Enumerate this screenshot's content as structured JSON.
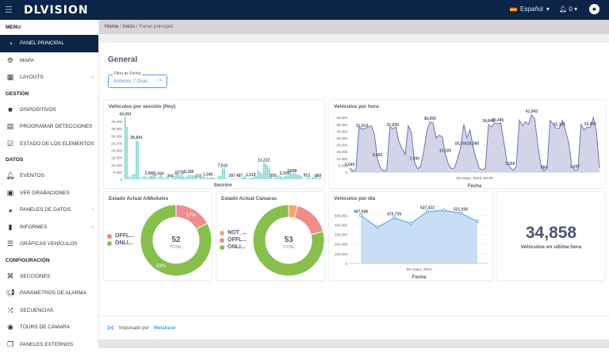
{
  "topbar": {
    "brand": "DLVISION",
    "language": "Español",
    "notifications": "0",
    "menu_icon": "hamburger-icon",
    "user_icon": "user-circle-icon"
  },
  "sidebar": {
    "sections": [
      {
        "title": "MENU",
        "items": [
          {
            "label": "PANEL PRINCIPAL",
            "icon": "dashboard-gauge-icon",
            "active": true
          },
          {
            "label": "MAPA",
            "icon": "globe-icon"
          },
          {
            "label": "LAYOUTS",
            "icon": "grid-icon",
            "expandable": true
          }
        ]
      },
      {
        "title": "GESTIÓN",
        "items": [
          {
            "label": "DISPOSITIVOS",
            "icon": "video-camera-icon"
          },
          {
            "label": "PROGRAMAR DETECCIONES",
            "icon": "calendar-icon"
          },
          {
            "label": "ESTADO DE LOS ELEMENTOS",
            "icon": "checkbox-icon"
          }
        ]
      },
      {
        "title": "DATOS",
        "items": [
          {
            "label": "EVENTOS",
            "icon": "bell-icon"
          },
          {
            "label": "VER GRABACIONES",
            "icon": "file-video-icon"
          },
          {
            "label": "PANELES DE DATOS",
            "icon": "gauge-icon",
            "expandable": true
          },
          {
            "label": "INFORMES",
            "icon": "file-icon",
            "expandable": true
          },
          {
            "label": "GRÁFICAS VEHÍCULOS",
            "icon": "chart-icon"
          }
        ]
      },
      {
        "title": "CONFIGURACIÓN",
        "items": [
          {
            "label": "SECCIONES",
            "icon": "binoculars-icon"
          },
          {
            "label": "PARÁMETROS DE ALARMA",
            "icon": "megaphone-icon"
          },
          {
            "label": "SECUENCIAS",
            "icon": "shuffle-icon"
          },
          {
            "label": "TOURS DE CÁMARA",
            "icon": "record-icon"
          },
          {
            "label": "PANELES EXTERNOS",
            "icon": "clone-icon"
          }
        ]
      }
    ]
  },
  "breadcrumb": [
    "Home",
    "Inicio",
    "Panel principal"
  ],
  "page": {
    "title": "General",
    "filter": {
      "label": "Filtro de Fecha",
      "value": "Anterior 7 Días"
    }
  },
  "footer": {
    "text": "Impulsado por",
    "brand": "Metabase"
  },
  "colors": {
    "navy": "#0b2447",
    "teal": "#88d8d0",
    "purple": "#7172ad",
    "blue": "#509ee3",
    "green": "#88bf4d",
    "red": "#ef8c8c",
    "orange": "#f9a46b"
  },
  "chart_data": [
    {
      "type": "bar",
      "title": "Vehiculos por sección (Hoy)",
      "xlabel": "Sección",
      "ylabel": "",
      "ylim": [
        0,
        45000
      ],
      "yticks": [
        "0",
        "5,000",
        "10,000",
        "15,000",
        "20,000",
        "25,000",
        "30,000",
        "35,000",
        "40,000"
      ],
      "values": [
        43091,
        36500,
        2000,
        1500,
        3500,
        3800,
        26841,
        26000,
        1000,
        800,
        2400,
        1800,
        1200,
        2066,
        2500,
        3200,
        3300,
        500,
        1930,
        3000,
        1500,
        800,
        1200,
        900,
        304,
        1000,
        2000,
        4500,
        5500,
        2739,
        4000,
        1800,
        1500,
        2000,
        3186,
        3000,
        2800,
        2500,
        1500,
        232,
        1500,
        1800,
        2000,
        1200,
        1346,
        1000,
        1500,
        1200,
        600,
        300,
        2800,
        2200,
        7515,
        7400,
        300,
        200,
        200,
        597,
        300,
        200,
        400,
        487,
        700,
        1500,
        2600,
        400,
        500,
        1010,
        1500,
        2000,
        2500,
        6500,
        5000,
        4000,
        11222,
        11000,
        9500,
        7800,
        1500,
        505,
        1000,
        2500,
        2800,
        2200,
        1500,
        2109,
        2500,
        3000,
        6800,
        3948,
        4800,
        4200,
        3500,
        3000,
        2500,
        300,
        100,
        821,
        2200,
        400,
        1500,
        2500,
        3000,
        660,
        2500
      ],
      "labels": {
        "0": "43,091",
        "6": "26,841",
        "13": "2,066",
        "18": "1,930",
        "24": "304",
        "29": "2,739",
        "34": "3,186",
        "39": "232",
        "44": "1,346",
        "52": "7,515",
        "57": "597",
        "61": "487",
        "67": "1,010",
        "74": "11,222",
        "79": "505",
        "85": "2,109",
        "89": "3,948",
        "97": "821",
        "103": "660"
      }
    },
    {
      "type": "area",
      "title": "Vehiculos por hora",
      "xlabel": "Fecha",
      "ylabel": "",
      "ylim": [
        0,
        43000
      ],
      "xtick": "29 mayo, 2023, 00:00",
      "yticks": [
        "0",
        "5,000",
        "10,000",
        "15,000",
        "20,000",
        "25,000",
        "30,000",
        "35,000",
        "40,000"
      ],
      "values": [
        3040,
        1000,
        1500,
        33000,
        31514,
        32000,
        33000,
        34000,
        28000,
        9843,
        3000,
        800,
        1500,
        33000,
        31835,
        33000,
        22000,
        17000,
        13000,
        34000,
        29000,
        7290,
        2500,
        4000,
        15000,
        30000,
        36695,
        36000,
        25000,
        27000,
        26000,
        13183,
        6000,
        2500,
        3000,
        10000,
        18264,
        35000,
        25000,
        31000,
        18380,
        10000,
        3000,
        1500,
        3000,
        34845,
        33000,
        36000,
        35445,
        36000,
        22000,
        8000,
        3350,
        1500,
        4000,
        38000,
        34000,
        37000,
        35000,
        41943,
        39000,
        20000,
        5000,
        884,
        3000,
        38000,
        35000,
        32000,
        32135,
        38000,
        30000,
        22000,
        5000,
        1467,
        2000,
        35000,
        31000,
        33000,
        32459,
        40000,
        30000,
        3000
      ],
      "labels": {
        "0": "3,040",
        "4": "31,514",
        "9": "9,843",
        "14": "31,835",
        "21": "7,290",
        "26": "36,695",
        "31": "13,183",
        "36": "18,264",
        "40": "18,380",
        "45": "34,845",
        "48": "35,445",
        "52": "3,350",
        "59": "41,943",
        "63": "884",
        "68": "32,135",
        "73": "1,467",
        "78": "32,459"
      }
    },
    {
      "type": "pie",
      "title": "Estado Actual AiModules",
      "total": "52",
      "total_label": "TOTAL",
      "slices": [
        {
          "name": "OFFL...",
          "value": 17,
          "label": "17%",
          "color": "#ef8c8c"
        },
        {
          "name": "ONLI...",
          "value": 83,
          "label": "83%",
          "color": "#88bf4d"
        }
      ]
    },
    {
      "type": "pie",
      "title": "Estado Actual Cámaras",
      "total": "53",
      "total_label": "TOTAL",
      "slices": [
        {
          "name": "NOT_...",
          "value": 4,
          "color": "#f9a46b"
        },
        {
          "name": "OFFL...",
          "value": 17,
          "color": "#ef8c8c"
        },
        {
          "name": "ONLI...",
          "value": 79,
          "color": "#88bf4d"
        }
      ]
    },
    {
      "type": "area",
      "title": "Vehiculos por día",
      "xlabel": "Fecha",
      "xtick": "29 mayo, 2023",
      "ylim": [
        0,
        560000
      ],
      "yticks": [
        "0",
        "100,000",
        "200,000",
        "300,000",
        "400,000",
        "500,000"
      ],
      "values": [
        497598,
        375000,
        473739,
        415000,
        537422,
        550000,
        521926,
        435000
      ],
      "labels": {
        "0": "497,598",
        "2": "473,739",
        "4": "537,422",
        "6": "521,926"
      }
    }
  ],
  "kpi": {
    "value": "34,858",
    "label": "Vehiculos en ultima hora"
  }
}
